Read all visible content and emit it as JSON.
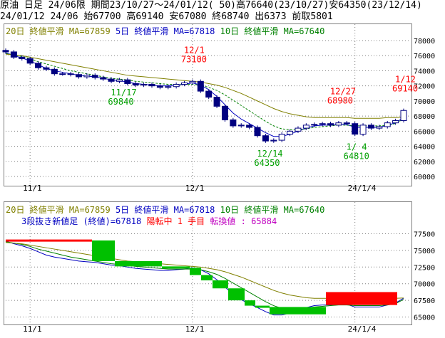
{
  "header": {
    "line1": "原油 日足 24/06限 期間23/10/27～24/01/12( 50)高76640(23/10/27)安64350(23/12/14)",
    "line2": "   24/01/12 24/06 始67700 高69140 安67080 終68740 出6373 前取5801"
  },
  "top_chart": {
    "legend": {
      "ma20": "20日 終値平滑 MA=67859",
      "ma5": "5日 終値平滑 MA=67818",
      "ma10": "10日 終値平滑 MA=67640"
    },
    "y_ticks": [
      "78000",
      "76000",
      "74000",
      "72000",
      "70000",
      "68000",
      "66000",
      "64000",
      "62000",
      "60000"
    ],
    "x_ticks": [
      "11/1",
      "12/1",
      "24/1/4"
    ],
    "annotations": [
      {
        "date": "12/1",
        "value": "73100",
        "color": "red"
      },
      {
        "date": "11/17",
        "value": "69840",
        "color": "green"
      },
      {
        "date": "12/14",
        "value": "64350",
        "color": "green"
      },
      {
        "date": "12/27",
        "value": "68980",
        "color": "red"
      },
      {
        "date": "1/ 4",
        "value": "64810",
        "color": "green"
      },
      {
        "date": "1/12",
        "value": "69140",
        "color": "red"
      }
    ]
  },
  "bottom_chart": {
    "legend": {
      "ma20": "20日 終値平滑 MA=67859",
      "ma5": "5日 終値平滑 MA=67818",
      "ma10": "10日 終値平滑 MA=67640"
    },
    "status": {
      "title": "3段抜き新値足 (終値)=67818",
      "turn": "陽転中",
      "count": "1 手目",
      "switch": "転換値 : 65884"
    },
    "y_ticks": [
      "77500",
      "75000",
      "72500",
      "70000",
      "67500",
      "65000"
    ],
    "x_ticks": [
      "11/1",
      "12/1",
      "24/1/4"
    ]
  },
  "colors": {
    "ma20": "#808000",
    "ma5": "#0000c0",
    "ma10": "#008000",
    "up": "#ff0000",
    "down": "#00c000",
    "grid": "#808080"
  },
  "chart_data": [
    {
      "type": "candlestick",
      "title": "原油 日足 24/06限",
      "ylim": [
        60000,
        78000
      ],
      "x": [
        "10/27",
        "10/30",
        "10/31",
        "11/1",
        "11/2",
        "11/6",
        "11/7",
        "11/8",
        "11/9",
        "11/10",
        "11/13",
        "11/14",
        "11/15",
        "11/16",
        "11/17",
        "11/20",
        "11/21",
        "11/22",
        "11/24",
        "11/27",
        "11/28",
        "11/29",
        "11/30",
        "12/1",
        "12/4",
        "12/5",
        "12/6",
        "12/7",
        "12/8",
        "12/11",
        "12/12",
        "12/13",
        "12/14",
        "12/15",
        "12/18",
        "12/19",
        "12/20",
        "12/21",
        "12/22",
        "12/25",
        "12/26",
        "12/27",
        "12/28",
        "1/4",
        "1/5",
        "1/8",
        "1/9",
        "1/10",
        "1/11",
        "1/12"
      ],
      "series": [
        {
          "name": "close",
          "values": [
            76500,
            75800,
            75600,
            75000,
            74400,
            74200,
            73600,
            73600,
            73500,
            73200,
            73400,
            73100,
            72900,
            72600,
            72800,
            72300,
            72100,
            72200,
            72000,
            71800,
            71900,
            72200,
            72400,
            72600,
            71300,
            70500,
            69300,
            67500,
            66700,
            66800,
            66500,
            65400,
            64700,
            64800,
            65600,
            66000,
            66400,
            66800,
            66900,
            67000,
            66800,
            67100,
            67000,
            65600,
            66800,
            66400,
            66600,
            67100,
            67400,
            68740
          ]
        },
        {
          "name": "5日 終値平滑",
          "values": [
            76400,
            76000,
            75700,
            75300,
            74800,
            74300,
            74000,
            73800,
            73600,
            73400,
            73300,
            73200,
            73000,
            72800,
            72700,
            72500,
            72300,
            72200,
            72100,
            72000,
            72000,
            72100,
            72200,
            72400,
            72100,
            71500,
            70600,
            69500,
            68400,
            67600,
            67000,
            66400,
            65800,
            65300,
            65300,
            65600,
            66000,
            66400,
            66700,
            66800,
            66800,
            66900,
            66900,
            66500,
            66500,
            66500,
            66500,
            66800,
            67100,
            67818
          ]
        },
        {
          "name": "10日 終値平滑",
          "values": [
            76300,
            76100,
            75900,
            75600,
            75200,
            74900,
            74600,
            74300,
            74000,
            73800,
            73600,
            73400,
            73200,
            73000,
            72900,
            72800,
            72600,
            72500,
            72400,
            72300,
            72200,
            72200,
            72200,
            72200,
            72100,
            71800,
            71400,
            70800,
            70100,
            69400,
            68700,
            68000,
            67300,
            66700,
            66300,
            66200,
            66200,
            66300,
            66500,
            66600,
            66700,
            66800,
            66800,
            66700,
            66700,
            66700,
            66700,
            66800,
            67000,
            67640
          ]
        },
        {
          "name": "20日 終値平滑",
          "values": [
            76200,
            76100,
            76000,
            75800,
            75600,
            75400,
            75200,
            75000,
            74800,
            74600,
            74400,
            74200,
            74000,
            73800,
            73600,
            73400,
            73300,
            73200,
            73100,
            73000,
            72900,
            72800,
            72700,
            72600,
            72500,
            72300,
            72100,
            71800,
            71400,
            71000,
            70500,
            70000,
            69500,
            69000,
            68600,
            68300,
            68100,
            67900,
            67800,
            67800,
            67800,
            67800,
            67800,
            67700,
            67700,
            67700,
            67700,
            67800,
            67800,
            67859
          ]
        }
      ]
    },
    {
      "type": "bar",
      "title": "3段抜き新値足 (終値)=67818",
      "ylim": [
        65000,
        77500
      ],
      "series": [
        {
          "name": "up",
          "values": [
            [
              76500,
              76640
            ],
            [
              66800,
              68740
            ]
          ]
        },
        {
          "name": "down",
          "values": [
            [
              73400,
              76500
            ],
            [
              72600,
              73400
            ],
            [
              72400,
              72600
            ],
            [
              71300,
              72400
            ],
            [
              70500,
              71300
            ],
            [
              69300,
              70500
            ],
            [
              67500,
              69300
            ],
            [
              66700,
              67500
            ],
            [
              66500,
              66700
            ],
            [
              65400,
              66500
            ],
            [
              64700,
              65400
            ]
          ]
        }
      ]
    }
  ]
}
